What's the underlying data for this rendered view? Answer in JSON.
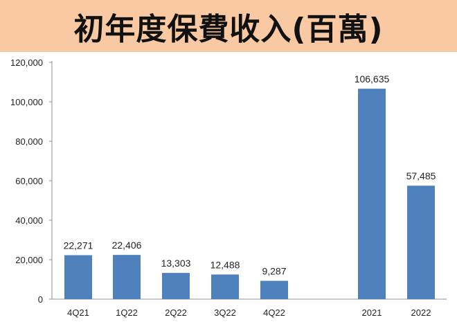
{
  "chart_data": {
    "type": "bar",
    "title": "初年度保費收入(百萬)",
    "categories": [
      "4Q21",
      "1Q22",
      "2Q22",
      "3Q22",
      "4Q22",
      "2021",
      "2022"
    ],
    "values": [
      22271,
      22406,
      13303,
      12488,
      9287,
      106635,
      57485
    ],
    "value_labels": [
      "22,271",
      "22,406",
      "13,303",
      "12,488",
      "9,287",
      "106,635",
      "57,485"
    ],
    "yticks": [
      "0",
      "20,000",
      "40,000",
      "60,000",
      "80,000",
      "100,000",
      "120,000"
    ],
    "ylim": [
      0,
      120000
    ],
    "grid": false,
    "legend": "none",
    "colors": {
      "bar": "#4f81bd",
      "title_background": "#f8c9a2",
      "axis": "#8c8c8c"
    }
  }
}
